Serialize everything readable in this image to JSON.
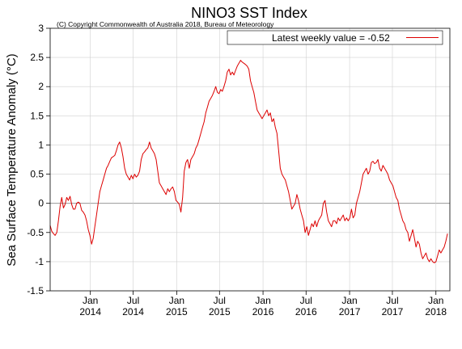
{
  "colors": {
    "series": "#dd0000",
    "axis": "#000000",
    "grid": "#d0d0d0",
    "zero_line": "#888888"
  },
  "chart_data": {
    "type": "line",
    "title": "NINO3 SST Index",
    "subtitle": "(C) Copyright Commonwealth of Australia 2018, Bureau of Meteorology",
    "ylabel": "Sea Surface Temperature Anomaly (°C)",
    "xlabel": "",
    "ylim": [
      -1.5,
      3
    ],
    "yticks": [
      -1.5,
      -1,
      -0.5,
      0,
      0.5,
      1,
      1.5,
      2,
      2.5,
      3
    ],
    "xlim": [
      "2013-07-15",
      "2018-03-01"
    ],
    "xticks": [
      {
        "date": "2014-01-01",
        "line1": "Jan",
        "line2": "2014"
      },
      {
        "date": "2014-07-01",
        "line1": "Jul",
        "line2": "2014"
      },
      {
        "date": "2015-01-01",
        "line1": "Jan",
        "line2": "2015"
      },
      {
        "date": "2015-07-01",
        "line1": "Jul",
        "line2": "2015"
      },
      {
        "date": "2016-01-01",
        "line1": "Jan",
        "line2": "2016"
      },
      {
        "date": "2016-07-01",
        "line1": "Jul",
        "line2": "2016"
      },
      {
        "date": "2017-01-01",
        "line1": "Jan",
        "line2": "2017"
      },
      {
        "date": "2017-07-01",
        "line1": "Jul",
        "line2": "2017"
      },
      {
        "date": "2018-01-01",
        "line1": "Jan",
        "line2": "2018"
      }
    ],
    "grid": true,
    "legend": {
      "position": "top-right",
      "label": "Latest weekly value = -0.52"
    },
    "series": [
      {
        "color": "#dd0000",
        "points": [
          [
            "2013-07-15",
            -0.38
          ],
          [
            "2013-07-22",
            -0.48
          ],
          [
            "2013-07-29",
            -0.52
          ],
          [
            "2013-08-05",
            -0.55
          ],
          [
            "2013-08-12",
            -0.5
          ],
          [
            "2013-08-19",
            -0.3
          ],
          [
            "2013-08-26",
            -0.05
          ],
          [
            "2013-09-02",
            0.1
          ],
          [
            "2013-09-09",
            -0.08
          ],
          [
            "2013-09-16",
            -0.02
          ],
          [
            "2013-09-23",
            0.1
          ],
          [
            "2013-09-30",
            0.05
          ],
          [
            "2013-10-07",
            0.12
          ],
          [
            "2013-10-14",
            -0.02
          ],
          [
            "2013-10-21",
            -0.1
          ],
          [
            "2013-10-28",
            -0.1
          ],
          [
            "2013-11-04",
            0.0
          ],
          [
            "2013-11-11",
            0.02
          ],
          [
            "2013-11-18",
            0.0
          ],
          [
            "2013-11-25",
            -0.12
          ],
          [
            "2013-12-02",
            -0.15
          ],
          [
            "2013-12-09",
            -0.2
          ],
          [
            "2013-12-16",
            -0.3
          ],
          [
            "2013-12-23",
            -0.45
          ],
          [
            "2013-12-30",
            -0.55
          ],
          [
            "2014-01-06",
            -0.7
          ],
          [
            "2014-01-13",
            -0.6
          ],
          [
            "2014-01-20",
            -0.4
          ],
          [
            "2014-01-27",
            -0.2
          ],
          [
            "2014-02-03",
            0.0
          ],
          [
            "2014-02-10",
            0.2
          ],
          [
            "2014-02-17",
            0.3
          ],
          [
            "2014-02-24",
            0.4
          ],
          [
            "2014-03-03",
            0.5
          ],
          [
            "2014-03-10",
            0.6
          ],
          [
            "2014-03-17",
            0.65
          ],
          [
            "2014-03-24",
            0.72
          ],
          [
            "2014-03-31",
            0.78
          ],
          [
            "2014-04-07",
            0.8
          ],
          [
            "2014-04-14",
            0.82
          ],
          [
            "2014-04-21",
            0.9
          ],
          [
            "2014-04-28",
            1.0
          ],
          [
            "2014-05-05",
            1.05
          ],
          [
            "2014-05-12",
            0.95
          ],
          [
            "2014-05-19",
            0.8
          ],
          [
            "2014-05-26",
            0.6
          ],
          [
            "2014-06-02",
            0.5
          ],
          [
            "2014-06-09",
            0.45
          ],
          [
            "2014-06-16",
            0.4
          ],
          [
            "2014-06-23",
            0.48
          ],
          [
            "2014-06-30",
            0.42
          ],
          [
            "2014-07-07",
            0.5
          ],
          [
            "2014-07-14",
            0.45
          ],
          [
            "2014-07-21",
            0.48
          ],
          [
            "2014-07-28",
            0.55
          ],
          [
            "2014-08-04",
            0.75
          ],
          [
            "2014-08-11",
            0.85
          ],
          [
            "2014-08-18",
            0.88
          ],
          [
            "2014-08-25",
            0.92
          ],
          [
            "2014-09-01",
            0.95
          ],
          [
            "2014-09-08",
            1.05
          ],
          [
            "2014-09-15",
            0.95
          ],
          [
            "2014-09-22",
            0.9
          ],
          [
            "2014-09-29",
            0.85
          ],
          [
            "2014-10-06",
            0.75
          ],
          [
            "2014-10-13",
            0.55
          ],
          [
            "2014-10-20",
            0.35
          ],
          [
            "2014-10-27",
            0.3
          ],
          [
            "2014-11-03",
            0.25
          ],
          [
            "2014-11-10",
            0.2
          ],
          [
            "2014-11-17",
            0.15
          ],
          [
            "2014-11-24",
            0.25
          ],
          [
            "2014-12-01",
            0.2
          ],
          [
            "2014-12-08",
            0.25
          ],
          [
            "2014-12-15",
            0.28
          ],
          [
            "2014-12-22",
            0.2
          ],
          [
            "2014-12-29",
            0.05
          ],
          [
            "2015-01-05",
            0.02
          ],
          [
            "2015-01-12",
            -0.02
          ],
          [
            "2015-01-19",
            -0.15
          ],
          [
            "2015-01-26",
            0.1
          ],
          [
            "2015-02-02",
            0.55
          ],
          [
            "2015-02-09",
            0.7
          ],
          [
            "2015-02-16",
            0.75
          ],
          [
            "2015-02-23",
            0.6
          ],
          [
            "2015-03-02",
            0.75
          ],
          [
            "2015-03-09",
            0.8
          ],
          [
            "2015-03-16",
            0.85
          ],
          [
            "2015-03-23",
            0.95
          ],
          [
            "2015-03-30",
            1.0
          ],
          [
            "2015-04-06",
            1.1
          ],
          [
            "2015-04-13",
            1.2
          ],
          [
            "2015-04-20",
            1.3
          ],
          [
            "2015-04-27",
            1.4
          ],
          [
            "2015-05-04",
            1.55
          ],
          [
            "2015-05-11",
            1.65
          ],
          [
            "2015-05-18",
            1.75
          ],
          [
            "2015-05-25",
            1.8
          ],
          [
            "2015-06-01",
            1.85
          ],
          [
            "2015-06-08",
            1.92
          ],
          [
            "2015-06-15",
            2.0
          ],
          [
            "2015-06-22",
            1.9
          ],
          [
            "2015-06-29",
            1.88
          ],
          [
            "2015-07-06",
            1.95
          ],
          [
            "2015-07-13",
            1.92
          ],
          [
            "2015-07-20",
            2.0
          ],
          [
            "2015-07-27",
            2.1
          ],
          [
            "2015-08-03",
            2.25
          ],
          [
            "2015-08-10",
            2.3
          ],
          [
            "2015-08-17",
            2.2
          ],
          [
            "2015-08-24",
            2.25
          ],
          [
            "2015-08-31",
            2.2
          ],
          [
            "2015-09-07",
            2.28
          ],
          [
            "2015-09-14",
            2.35
          ],
          [
            "2015-09-21",
            2.4
          ],
          [
            "2015-09-28",
            2.45
          ],
          [
            "2015-10-05",
            2.42
          ],
          [
            "2015-10-12",
            2.4
          ],
          [
            "2015-10-19",
            2.38
          ],
          [
            "2015-10-26",
            2.35
          ],
          [
            "2015-11-02",
            2.3
          ],
          [
            "2015-11-09",
            2.1
          ],
          [
            "2015-11-16",
            2.0
          ],
          [
            "2015-11-23",
            1.9
          ],
          [
            "2015-11-30",
            1.75
          ],
          [
            "2015-12-07",
            1.6
          ],
          [
            "2015-12-14",
            1.55
          ],
          [
            "2015-12-21",
            1.5
          ],
          [
            "2015-12-28",
            1.45
          ],
          [
            "2016-01-04",
            1.5
          ],
          [
            "2016-01-11",
            1.55
          ],
          [
            "2016-01-18",
            1.6
          ],
          [
            "2016-01-25",
            1.5
          ],
          [
            "2016-02-01",
            1.55
          ],
          [
            "2016-02-08",
            1.4
          ],
          [
            "2016-02-15",
            1.45
          ],
          [
            "2016-02-22",
            1.3
          ],
          [
            "2016-02-29",
            1.2
          ],
          [
            "2016-03-07",
            0.9
          ],
          [
            "2016-03-14",
            0.6
          ],
          [
            "2016-03-21",
            0.5
          ],
          [
            "2016-03-28",
            0.45
          ],
          [
            "2016-04-04",
            0.4
          ],
          [
            "2016-04-11",
            0.3
          ],
          [
            "2016-04-18",
            0.2
          ],
          [
            "2016-04-25",
            0.05
          ],
          [
            "2016-05-02",
            -0.1
          ],
          [
            "2016-05-09",
            -0.05
          ],
          [
            "2016-05-16",
            0.0
          ],
          [
            "2016-05-23",
            0.15
          ],
          [
            "2016-05-30",
            0.05
          ],
          [
            "2016-06-06",
            -0.1
          ],
          [
            "2016-06-13",
            -0.2
          ],
          [
            "2016-06-20",
            -0.3
          ],
          [
            "2016-06-27",
            -0.5
          ],
          [
            "2016-07-04",
            -0.4
          ],
          [
            "2016-07-11",
            -0.55
          ],
          [
            "2016-07-18",
            -0.45
          ],
          [
            "2016-07-25",
            -0.35
          ],
          [
            "2016-08-01",
            -0.4
          ],
          [
            "2016-08-08",
            -0.3
          ],
          [
            "2016-08-15",
            -0.4
          ],
          [
            "2016-08-22",
            -0.3
          ],
          [
            "2016-08-29",
            -0.25
          ],
          [
            "2016-09-05",
            -0.2
          ],
          [
            "2016-09-12",
            0.0
          ],
          [
            "2016-09-19",
            0.05
          ],
          [
            "2016-09-26",
            -0.15
          ],
          [
            "2016-10-03",
            -0.3
          ],
          [
            "2016-10-10",
            -0.35
          ],
          [
            "2016-10-17",
            -0.4
          ],
          [
            "2016-10-24",
            -0.3
          ],
          [
            "2016-10-31",
            -0.3
          ],
          [
            "2016-11-07",
            -0.35
          ],
          [
            "2016-11-14",
            -0.25
          ],
          [
            "2016-11-21",
            -0.3
          ],
          [
            "2016-11-28",
            -0.25
          ],
          [
            "2016-12-05",
            -0.2
          ],
          [
            "2016-12-12",
            -0.3
          ],
          [
            "2016-12-19",
            -0.25
          ],
          [
            "2016-12-26",
            -0.3
          ],
          [
            "2017-01-02",
            -0.25
          ],
          [
            "2017-01-09",
            -0.1
          ],
          [
            "2017-01-16",
            -0.25
          ],
          [
            "2017-01-23",
            -0.2
          ],
          [
            "2017-01-30",
            0.0
          ],
          [
            "2017-02-06",
            0.1
          ],
          [
            "2017-02-13",
            0.2
          ],
          [
            "2017-02-20",
            0.35
          ],
          [
            "2017-02-27",
            0.5
          ],
          [
            "2017-03-06",
            0.55
          ],
          [
            "2017-03-13",
            0.6
          ],
          [
            "2017-03-20",
            0.5
          ],
          [
            "2017-03-27",
            0.55
          ],
          [
            "2017-04-03",
            0.7
          ],
          [
            "2017-04-10",
            0.72
          ],
          [
            "2017-04-17",
            0.68
          ],
          [
            "2017-04-24",
            0.7
          ],
          [
            "2017-05-01",
            0.75
          ],
          [
            "2017-05-08",
            0.6
          ],
          [
            "2017-05-15",
            0.55
          ],
          [
            "2017-05-22",
            0.65
          ],
          [
            "2017-05-29",
            0.6
          ],
          [
            "2017-06-05",
            0.55
          ],
          [
            "2017-06-12",
            0.5
          ],
          [
            "2017-06-19",
            0.4
          ],
          [
            "2017-06-26",
            0.35
          ],
          [
            "2017-07-03",
            0.3
          ],
          [
            "2017-07-10",
            0.2
          ],
          [
            "2017-07-17",
            0.1
          ],
          [
            "2017-07-24",
            0.05
          ],
          [
            "2017-07-31",
            -0.1
          ],
          [
            "2017-08-07",
            -0.2
          ],
          [
            "2017-08-14",
            -0.3
          ],
          [
            "2017-08-21",
            -0.35
          ],
          [
            "2017-08-28",
            -0.45
          ],
          [
            "2017-09-04",
            -0.5
          ],
          [
            "2017-09-11",
            -0.65
          ],
          [
            "2017-09-18",
            -0.55
          ],
          [
            "2017-09-25",
            -0.45
          ],
          [
            "2017-10-02",
            -0.6
          ],
          [
            "2017-10-09",
            -0.75
          ],
          [
            "2017-10-16",
            -0.65
          ],
          [
            "2017-10-23",
            -0.7
          ],
          [
            "2017-10-30",
            -0.85
          ],
          [
            "2017-11-06",
            -0.95
          ],
          [
            "2017-11-13",
            -0.9
          ],
          [
            "2017-11-20",
            -0.85
          ],
          [
            "2017-11-27",
            -0.95
          ],
          [
            "2017-12-04",
            -1.0
          ],
          [
            "2017-12-11",
            -0.95
          ],
          [
            "2017-12-18",
            -1.0
          ],
          [
            "2017-12-25",
            -1.02
          ],
          [
            "2018-01-01",
            -1.0
          ],
          [
            "2018-01-08",
            -0.9
          ],
          [
            "2018-01-15",
            -0.8
          ],
          [
            "2018-01-22",
            -0.85
          ],
          [
            "2018-01-29",
            -0.8
          ],
          [
            "2018-02-05",
            -0.75
          ],
          [
            "2018-02-12",
            -0.65
          ],
          [
            "2018-02-19",
            -0.52
          ]
        ]
      }
    ]
  }
}
